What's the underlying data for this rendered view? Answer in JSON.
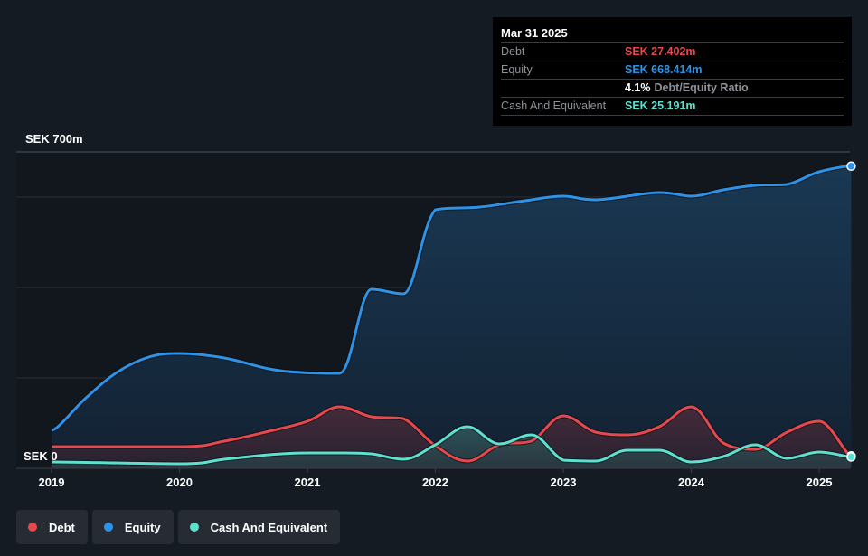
{
  "tooltip": {
    "date": "Mar 31 2025",
    "rows": [
      {
        "label": "Debt",
        "value": "SEK 27.402m",
        "color": "#e5484d"
      },
      {
        "label": "Equity",
        "value": "SEK 668.414m",
        "color": "#2e93e6"
      },
      {
        "ratio_pct": "4.1%",
        "ratio_label": "Debt/Equity Ratio"
      },
      {
        "label": "Cash And Equivalent",
        "value": "SEK 25.191m",
        "color": "#5ee0cf"
      }
    ]
  },
  "legend": [
    {
      "label": "Debt",
      "color": "#e5484d"
    },
    {
      "label": "Equity",
      "color": "#2e93e6"
    },
    {
      "label": "Cash And Equivalent",
      "color": "#5ee0cf"
    }
  ],
  "chart_data": {
    "type": "area",
    "title": "",
    "xlabel": "",
    "ylabel": "",
    "currency": "SEK",
    "unit": "m",
    "ylim": [
      0,
      700
    ],
    "y_top_label": "SEK 700m",
    "y_zero_label": "SEK 0",
    "gridlines": [
      0,
      200,
      400,
      600,
      700
    ],
    "xlim": [
      2019.0,
      2025.25
    ],
    "x_ticks": [
      2019,
      2020,
      2021,
      2022,
      2023,
      2024,
      2025
    ],
    "x_tick_labels": [
      "2019",
      "2020",
      "2021",
      "2022",
      "2023",
      "2024",
      "2025"
    ],
    "legend_position": "bottom-left",
    "series": [
      {
        "name": "Equity",
        "color": "#2e93e6",
        "x": [
          2019.0,
          2019.27,
          2019.51,
          2019.76,
          2020.0,
          2020.35,
          2020.7,
          2020.95,
          2021.25,
          2021.5,
          2021.75,
          2022.0,
          2022.35,
          2022.7,
          2023.0,
          2023.25,
          2023.75,
          2024.0,
          2024.25,
          2024.5,
          2024.75,
          2025.0,
          2025.25
        ],
        "values": [
          84,
          156,
          212,
          246,
          254,
          244,
          220,
          212,
          210,
          396,
          386,
          572,
          578,
          592,
          602,
          594,
          610,
          602,
          616,
          626,
          628,
          656,
          668.414
        ]
      },
      {
        "name": "Debt",
        "color": "#e5484d",
        "x": [
          2019.0,
          2020.0,
          2020.35,
          2020.7,
          2021.0,
          2021.25,
          2021.5,
          2021.75,
          2022.0,
          2022.25,
          2022.5,
          2022.75,
          2023.0,
          2023.25,
          2023.5,
          2023.75,
          2024.0,
          2024.25,
          2024.5,
          2024.75,
          2025.0,
          2025.25
        ],
        "values": [
          48,
          48,
          60,
          82,
          104,
          136,
          114,
          110,
          50,
          16,
          52,
          60,
          116,
          80,
          74,
          92,
          136,
          56,
          42,
          80,
          104,
          27.402
        ]
      },
      {
        "name": "Cash And Equivalent",
        "color": "#5ee0cf",
        "x": [
          2019.0,
          2020.0,
          2020.35,
          2020.7,
          2021.0,
          2021.25,
          2021.5,
          2021.75,
          2022.0,
          2022.25,
          2022.5,
          2022.75,
          2023.0,
          2023.25,
          2023.5,
          2023.75,
          2024.0,
          2024.25,
          2024.5,
          2024.75,
          2025.0,
          2025.25
        ],
        "values": [
          14,
          10,
          20,
          30,
          34,
          34,
          32,
          20,
          52,
          92,
          54,
          74,
          18,
          16,
          40,
          40,
          14,
          26,
          52,
          22,
          36,
          25.191
        ]
      }
    ]
  }
}
